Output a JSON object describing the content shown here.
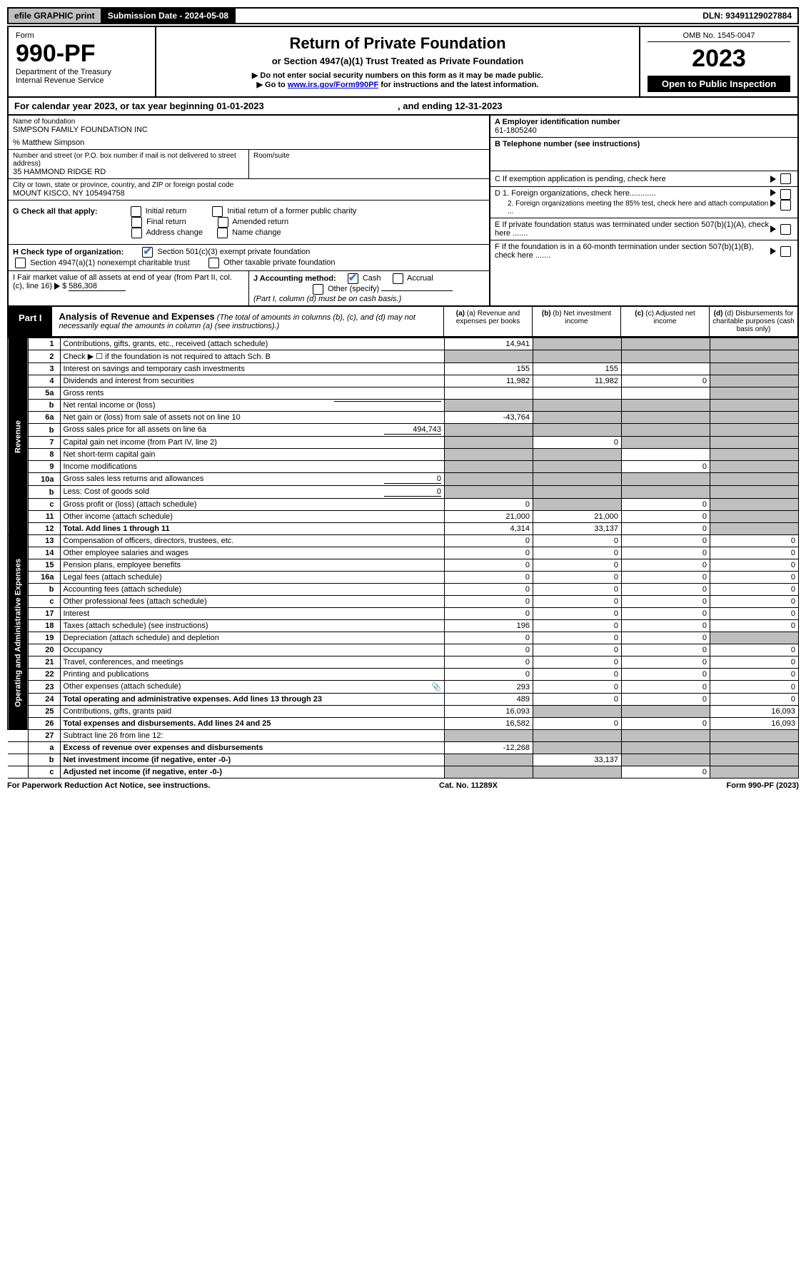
{
  "top": {
    "efile": "efile GRAPHIC print",
    "subdate_label": "Submission Date - 2024-05-08",
    "dln": "DLN: 93491129027884"
  },
  "head": {
    "form_word": "Form",
    "form_no": "990-PF",
    "dept": "Department of the Treasury",
    "irs": "Internal Revenue Service",
    "title": "Return of Private Foundation",
    "subtitle": "or Section 4947(a)(1) Trust Treated as Private Foundation",
    "instr1": "▶ Do not enter social security numbers on this form as it may be made public.",
    "instr2_a": "▶ Go to ",
    "instr2_link": "www.irs.gov/Form990PF",
    "instr2_b": " for instructions and the latest information.",
    "omb": "OMB No. 1545-0047",
    "year": "2023",
    "open": "Open to Public Inspection"
  },
  "cal": {
    "text_a": "For calendar year 2023, or tax year beginning ",
    "begin": "01-01-2023",
    "text_b": " , and ending ",
    "end": "12-31-2023"
  },
  "info": {
    "name_label": "Name of foundation",
    "name": "SIMPSON FAMILY FOUNDATION INC",
    "care_of": "% Matthew Simpson",
    "addr_label": "Number and street (or P.O. box number if mail is not delivered to street address)",
    "addr": "35 HAMMOND RIDGE RD",
    "room_label": "Room/suite",
    "city_label": "City or town, state or province, country, and ZIP or foreign postal code",
    "city": "MOUNT KISCO, NY  105494758",
    "A_label": "A Employer identification number",
    "A_val": "61-1805240",
    "B_label": "B Telephone number (see instructions)",
    "C_label": "C If exemption application is pending, check here",
    "D1": "D 1. Foreign organizations, check here............",
    "D2": "2. Foreign organizations meeting the 85% test, check here and attach computation ...",
    "E": "E  If private foundation status was terminated under section 507(b)(1)(A), check here .......",
    "F": "F  If the foundation is in a 60-month termination under section 507(b)(1)(B), check here .......",
    "G_label": "G Check all that apply:",
    "G_opts": [
      "Initial return",
      "Initial return of a former public charity",
      "Final return",
      "Amended return",
      "Address change",
      "Name change"
    ],
    "H_label": "H Check type of organization:",
    "H1": "Section 501(c)(3) exempt private foundation",
    "H2": "Section 4947(a)(1) nonexempt charitable trust",
    "H3": "Other taxable private foundation",
    "I_label": "I Fair market value of all assets at end of year (from Part II, col. (c), line 16)",
    "I_val": "586,308",
    "J_label": "J Accounting method:",
    "J_cash": "Cash",
    "J_accrual": "Accrual",
    "J_other": "Other (specify)",
    "J_note": "(Part I, column (d) must be on cash basis.)"
  },
  "part1": {
    "label": "Part I",
    "title": "Analysis of Revenue and Expenses",
    "note": "(The total of amounts in columns (b), (c), and (d) may not necessarily equal the amounts in column (a) (see instructions).)",
    "col_a": "(a) Revenue and expenses per books",
    "col_b": "(b) Net investment income",
    "col_c": "(c) Adjusted net income",
    "col_d": "(d) Disbursements for charitable purposes (cash basis only)",
    "side_rev": "Revenue",
    "side_exp": "Operating and Administrative Expenses"
  },
  "rows": [
    {
      "n": "1",
      "label": "Contributions, gifts, grants, etc., received (attach schedule)",
      "a": "14,941",
      "b": "",
      "c": "",
      "d": "",
      "shade": [
        "b",
        "c",
        "d"
      ]
    },
    {
      "n": "2",
      "label": "Check ▶ ☐ if the foundation is not required to attach Sch. B",
      "a": "",
      "b": "",
      "c": "",
      "d": "",
      "shade": [
        "a",
        "b",
        "c",
        "d"
      ]
    },
    {
      "n": "3",
      "label": "Interest on savings and temporary cash investments",
      "a": "155",
      "b": "155",
      "c": "",
      "d": "",
      "shade": [
        "d"
      ]
    },
    {
      "n": "4",
      "label": "Dividends and interest from securities",
      "a": "11,982",
      "b": "11,982",
      "c": "0",
      "d": "",
      "shade": [
        "d"
      ]
    },
    {
      "n": "5a",
      "label": "Gross rents",
      "a": "",
      "b": "",
      "c": "",
      "d": "",
      "shade": [
        "d"
      ]
    },
    {
      "n": "b",
      "label": "Net rental income or (loss)",
      "a": "",
      "b": "",
      "c": "",
      "d": "",
      "shade": [
        "a",
        "b",
        "c",
        "d"
      ],
      "inline_blank": true
    },
    {
      "n": "6a",
      "label": "Net gain or (loss) from sale of assets not on line 10",
      "a": "-43,764",
      "b": "",
      "c": "",
      "d": "",
      "shade": [
        "b",
        "c",
        "d"
      ]
    },
    {
      "n": "b",
      "label": "Gross sales price for all assets on line 6a",
      "a": "",
      "b": "",
      "c": "",
      "d": "",
      "shade": [
        "a",
        "b",
        "c",
        "d"
      ],
      "inline_val": "494,743"
    },
    {
      "n": "7",
      "label": "Capital gain net income (from Part IV, line 2)",
      "a": "",
      "b": "0",
      "c": "",
      "d": "",
      "shade": [
        "a",
        "c",
        "d"
      ]
    },
    {
      "n": "8",
      "label": "Net short-term capital gain",
      "a": "",
      "b": "",
      "c": "",
      "d": "",
      "shade": [
        "a",
        "b",
        "d"
      ]
    },
    {
      "n": "9",
      "label": "Income modifications",
      "a": "",
      "b": "",
      "c": "0",
      "d": "",
      "shade": [
        "a",
        "b",
        "d"
      ]
    },
    {
      "n": "10a",
      "label": "Gross sales less returns and allowances",
      "a": "",
      "b": "",
      "c": "",
      "d": "",
      "shade": [
        "a",
        "b",
        "c",
        "d"
      ],
      "inline_val": "0"
    },
    {
      "n": "b",
      "label": "Less: Cost of goods sold",
      "a": "",
      "b": "",
      "c": "",
      "d": "",
      "shade": [
        "a",
        "b",
        "c",
        "d"
      ],
      "inline_val": "0"
    },
    {
      "n": "c",
      "label": "Gross profit or (loss) (attach schedule)",
      "a": "0",
      "b": "",
      "c": "0",
      "d": "",
      "shade": [
        "b",
        "d"
      ]
    },
    {
      "n": "11",
      "label": "Other income (attach schedule)",
      "a": "21,000",
      "b": "21,000",
      "c": "0",
      "d": "",
      "shade": [
        "d"
      ]
    },
    {
      "n": "12",
      "label": "Total. Add lines 1 through 11",
      "a": "4,314",
      "b": "33,137",
      "c": "0",
      "d": "",
      "shade": [
        "d"
      ],
      "bold": true
    },
    {
      "n": "13",
      "label": "Compensation of officers, directors, trustees, etc.",
      "a": "0",
      "b": "0",
      "c": "0",
      "d": "0"
    },
    {
      "n": "14",
      "label": "Other employee salaries and wages",
      "a": "0",
      "b": "0",
      "c": "0",
      "d": "0"
    },
    {
      "n": "15",
      "label": "Pension plans, employee benefits",
      "a": "0",
      "b": "0",
      "c": "0",
      "d": "0"
    },
    {
      "n": "16a",
      "label": "Legal fees (attach schedule)",
      "a": "0",
      "b": "0",
      "c": "0",
      "d": "0"
    },
    {
      "n": "b",
      "label": "Accounting fees (attach schedule)",
      "a": "0",
      "b": "0",
      "c": "0",
      "d": "0"
    },
    {
      "n": "c",
      "label": "Other professional fees (attach schedule)",
      "a": "0",
      "b": "0",
      "c": "0",
      "d": "0"
    },
    {
      "n": "17",
      "label": "Interest",
      "a": "0",
      "b": "0",
      "c": "0",
      "d": "0"
    },
    {
      "n": "18",
      "label": "Taxes (attach schedule) (see instructions)",
      "a": "196",
      "b": "0",
      "c": "0",
      "d": "0"
    },
    {
      "n": "19",
      "label": "Depreciation (attach schedule) and depletion",
      "a": "0",
      "b": "0",
      "c": "0",
      "d": "",
      "shade": [
        "d"
      ]
    },
    {
      "n": "20",
      "label": "Occupancy",
      "a": "0",
      "b": "0",
      "c": "0",
      "d": "0"
    },
    {
      "n": "21",
      "label": "Travel, conferences, and meetings",
      "a": "0",
      "b": "0",
      "c": "0",
      "d": "0"
    },
    {
      "n": "22",
      "label": "Printing and publications",
      "a": "0",
      "b": "0",
      "c": "0",
      "d": "0"
    },
    {
      "n": "23",
      "label": "Other expenses (attach schedule)",
      "a": "293",
      "b": "0",
      "c": "0",
      "d": "0",
      "icon": true
    },
    {
      "n": "24",
      "label": "Total operating and administrative expenses. Add lines 13 through 23",
      "a": "489",
      "b": "0",
      "c": "0",
      "d": "0",
      "bold": true
    },
    {
      "n": "25",
      "label": "Contributions, gifts, grants paid",
      "a": "16,093",
      "b": "",
      "c": "",
      "d": "16,093",
      "shade": [
        "b",
        "c"
      ]
    },
    {
      "n": "26",
      "label": "Total expenses and disbursements. Add lines 24 and 25",
      "a": "16,582",
      "b": "0",
      "c": "0",
      "d": "16,093",
      "bold": true
    },
    {
      "n": "27",
      "label": "Subtract line 26 from line 12:",
      "a": "",
      "b": "",
      "c": "",
      "d": "",
      "shade": [
        "a",
        "b",
        "c",
        "d"
      ]
    },
    {
      "n": "a",
      "label": "Excess of revenue over expenses and disbursements",
      "a": "-12,268",
      "b": "",
      "c": "",
      "d": "",
      "shade": [
        "b",
        "c",
        "d"
      ],
      "bold": true
    },
    {
      "n": "b",
      "label": "Net investment income (if negative, enter -0-)",
      "a": "",
      "b": "33,137",
      "c": "",
      "d": "",
      "shade": [
        "a",
        "c",
        "d"
      ],
      "bold": true
    },
    {
      "n": "c",
      "label": "Adjusted net income (if negative, enter -0-)",
      "a": "",
      "b": "",
      "c": "0",
      "d": "",
      "shade": [
        "a",
        "b",
        "d"
      ],
      "bold": true
    }
  ],
  "footer": {
    "left": "For Paperwork Reduction Act Notice, see instructions.",
    "mid": "Cat. No. 11289X",
    "right": "Form 990-PF (2023)"
  },
  "colors": {
    "shade": "#bfbfbf",
    "link": "#0000cc",
    "check": "#3b7dd8"
  }
}
